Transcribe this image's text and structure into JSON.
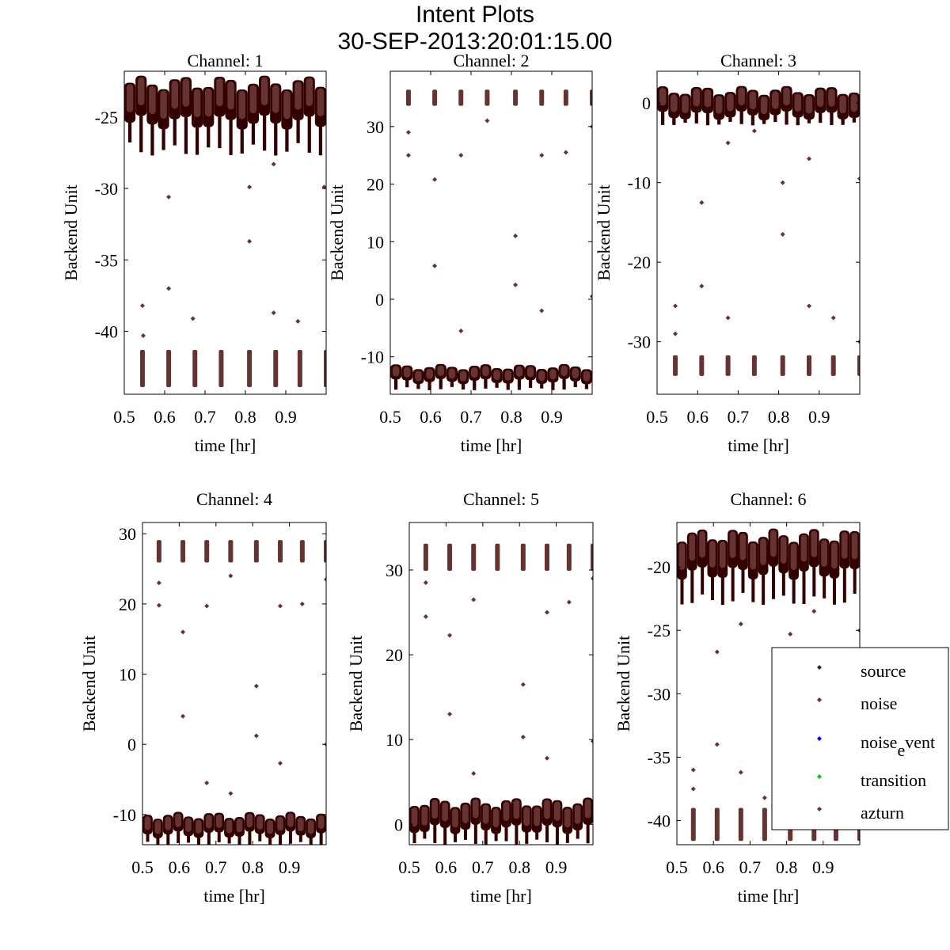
{
  "title": "Intent Plots",
  "subtitle": "30-SEP-2013:20:01:15.00",
  "colors": {
    "dark": "#330000",
    "light": "#663333",
    "source": "#4d1a1a",
    "noise": "#8b1a2a",
    "noise_event": "#0000ff",
    "transition": "#00cc00",
    "azturn": "#663333"
  },
  "legend": {
    "placement": "bottom-right",
    "items": [
      {
        "label": "source",
        "color": "#4d1a1a"
      },
      {
        "label": "noise",
        "color": "#8b1a2a"
      },
      {
        "label": "noise",
        "sub": "e",
        "rest": "vent",
        "color": "#0000ff"
      },
      {
        "label": "transition",
        "color": "#00cc00"
      },
      {
        "label": "azturn",
        "color": "#663333"
      }
    ]
  },
  "chart_data": [
    {
      "type": "scatter",
      "title": "Channel: 1",
      "xlabel": "time [hr]",
      "ylabel": "Backend Unit",
      "xlim": [
        0.5,
        1.0
      ],
      "xticks": [
        "0.5",
        "0.6",
        "0.7",
        "0.8",
        "0.9"
      ],
      "ylim": [
        -44.4,
        -21.8
      ],
      "yticks": [
        "-25",
        "-30",
        "-35",
        "-40"
      ],
      "band": {
        "center": -24,
        "half": 1.4,
        "spike": 2.3
      },
      "clusters": {
        "x": [
          0.545,
          0.61,
          0.675,
          0.74,
          0.81,
          0.875,
          0.935,
          1.0
        ],
        "center": -42.6,
        "half": 1.3
      },
      "outliers": [
        [
          0.545,
          -38.2
        ],
        [
          0.547,
          -40.3
        ],
        [
          0.61,
          -30.6
        ],
        [
          0.61,
          -37
        ],
        [
          0.67,
          -39.1
        ],
        [
          0.81,
          -29.9
        ],
        [
          0.81,
          -33.7
        ],
        [
          0.87,
          -28.3
        ],
        [
          0.87,
          -38.7
        ],
        [
          0.93,
          -39.3
        ],
        [
          0.995,
          -29.9
        ]
      ]
    },
    {
      "type": "scatter",
      "title": "Channel: 2",
      "xlabel": "time [hr]",
      "ylabel": "Backend Unit",
      "xlim": [
        0.5,
        1.0
      ],
      "xticks": [
        "0.5",
        "0.6",
        "0.7",
        "0.8",
        "0.9"
      ],
      "ylim": [
        -16.5,
        39.6
      ],
      "yticks": [
        "30",
        "20",
        "10",
        "0",
        "-10"
      ],
      "band": {
        "center": -13,
        "half": 1.3,
        "spike": 1.5
      },
      "clusters": {
        "x": [
          0.545,
          0.61,
          0.675,
          0.74,
          0.81,
          0.875,
          0.935,
          1.0
        ],
        "center": 35,
        "half": 1.4
      },
      "outliers": [
        [
          0.545,
          25
        ],
        [
          0.545,
          29
        ],
        [
          0.61,
          20.8
        ],
        [
          0.61,
          5.8
        ],
        [
          0.675,
          25
        ],
        [
          0.675,
          -5.5
        ],
        [
          0.74,
          31
        ],
        [
          0.81,
          11
        ],
        [
          0.81,
          2.5
        ],
        [
          0.875,
          25
        ],
        [
          0.875,
          -2
        ],
        [
          0.935,
          25.5
        ],
        [
          1.0,
          30
        ],
        [
          1.0,
          0.5
        ]
      ]
    },
    {
      "type": "scatter",
      "title": "Channel: 3",
      "xlabel": "time [hr]",
      "ylabel": "Backend Unit",
      "xlim": [
        0.5,
        1.0
      ],
      "xticks": [
        "0.5",
        "0.6",
        "0.7",
        "0.8",
        "0.9"
      ],
      "ylim": [
        -36.6,
        4
      ],
      "yticks": [
        "0",
        "-10",
        "-20",
        "-30"
      ],
      "band": {
        "center": 0,
        "half": 1.6,
        "spike": 1.2
      },
      "clusters": {
        "x": [
          0.545,
          0.61,
          0.675,
          0.74,
          0.81,
          0.875,
          0.935,
          1.0
        ],
        "center": -33,
        "half": 1.3
      },
      "outliers": [
        [
          0.545,
          -25.5
        ],
        [
          0.545,
          -29
        ],
        [
          0.61,
          -12.5
        ],
        [
          0.61,
          -23
        ],
        [
          0.675,
          -5
        ],
        [
          0.675,
          -27
        ],
        [
          0.74,
          -3.5
        ],
        [
          0.81,
          -10
        ],
        [
          0.81,
          -16.5
        ],
        [
          0.875,
          -7
        ],
        [
          0.875,
          -25.5
        ],
        [
          0.935,
          -27
        ],
        [
          1.0,
          -9.5
        ],
        [
          1.0,
          -30
        ]
      ]
    },
    {
      "type": "scatter",
      "title": "Channel: 4",
      "xlabel": "time [hr]",
      "ylabel": "Backend Unit",
      "xlim": [
        0.5,
        1.0
      ],
      "xticks": [
        "0.5",
        "0.6",
        "0.7",
        "0.8",
        "0.9"
      ],
      "ylim": [
        -14.3,
        31.6
      ],
      "yticks": [
        "30",
        "20",
        "10",
        "0",
        "-10"
      ],
      "band": {
        "center": -11.5,
        "half": 1.4,
        "spike": 1.5
      },
      "clusters": {
        "x": [
          0.545,
          0.61,
          0.675,
          0.74,
          0.81,
          0.875,
          0.935,
          1.0
        ],
        "center": 27.5,
        "half": 1.6
      },
      "outliers": [
        [
          0.545,
          23
        ],
        [
          0.545,
          19.8
        ],
        [
          0.61,
          16
        ],
        [
          0.61,
          4
        ],
        [
          0.675,
          19.7
        ],
        [
          0.675,
          -5.5
        ],
        [
          0.74,
          24
        ],
        [
          0.74,
          -7
        ],
        [
          0.81,
          8.3
        ],
        [
          0.81,
          1.2
        ],
        [
          0.875,
          19.7
        ],
        [
          0.875,
          -2.7
        ],
        [
          0.935,
          20
        ],
        [
          1.0,
          23.5
        ],
        [
          1.0,
          0
        ]
      ]
    },
    {
      "type": "scatter",
      "title": "Channel: 5",
      "xlabel": "time [hr]",
      "ylabel": "Backend Unit",
      "xlim": [
        0.5,
        1.0
      ],
      "xticks": [
        "0.5",
        "0.6",
        "0.7",
        "0.8",
        "0.9"
      ],
      "ylim": [
        -2.4,
        35.6
      ],
      "yticks": [
        "30",
        "20",
        "10",
        "0"
      ],
      "band": {
        "center": 1,
        "half": 1.6,
        "spike": 1.8
      },
      "clusters": {
        "x": [
          0.545,
          0.61,
          0.675,
          0.74,
          0.81,
          0.875,
          0.935,
          1.0
        ],
        "center": 31.5,
        "half": 1.6
      },
      "outliers": [
        [
          0.545,
          24.5
        ],
        [
          0.545,
          28.5
        ],
        [
          0.61,
          22.3
        ],
        [
          0.61,
          13
        ],
        [
          0.675,
          26.5
        ],
        [
          0.675,
          6
        ],
        [
          0.81,
          16.5
        ],
        [
          0.81,
          10.3
        ],
        [
          0.875,
          25
        ],
        [
          0.875,
          7.8
        ],
        [
          0.935,
          26.2
        ],
        [
          1.0,
          29
        ],
        [
          1.0,
          9.8
        ]
      ]
    },
    {
      "type": "scatter",
      "title": "Channel: 6",
      "xlabel": "time [hr]",
      "ylabel": "Backend Unit",
      "xlim": [
        0.5,
        1.0
      ],
      "xticks": [
        "0.5",
        "0.6",
        "0.7",
        "0.8",
        "0.9"
      ],
      "ylim": [
        -41.9,
        -16.5
      ],
      "yticks": [
        "-20",
        "-25",
        "-30",
        "-35",
        "-40"
      ],
      "band": {
        "center": -19,
        "half": 1.5,
        "spike": 2.5
      },
      "clusters": {
        "x": [
          0.545,
          0.61,
          0.675,
          0.74,
          0.81,
          0.875,
          0.935,
          1.0
        ],
        "center": -40.3,
        "half": 1.3
      },
      "outliers": [
        [
          0.545,
          -36
        ],
        [
          0.545,
          -37.5
        ],
        [
          0.61,
          -26.7
        ],
        [
          0.61,
          -34
        ],
        [
          0.675,
          -24.5
        ],
        [
          0.675,
          -36.2
        ],
        [
          0.74,
          -38.2
        ],
        [
          0.81,
          -25.3
        ],
        [
          0.875,
          -23.5
        ],
        [
          1.0,
          -25
        ]
      ]
    }
  ]
}
